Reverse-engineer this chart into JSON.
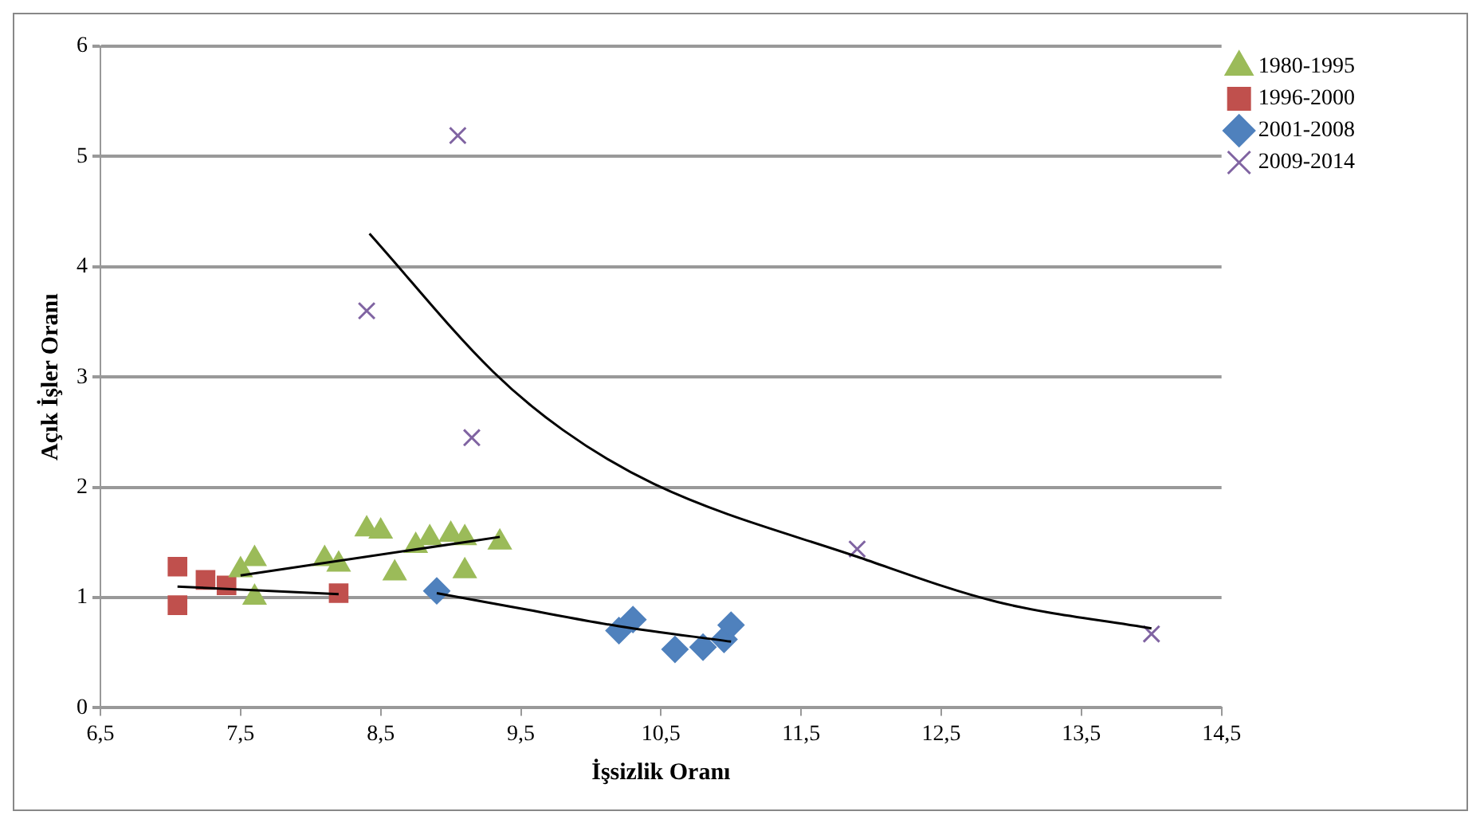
{
  "chart_data": {
    "type": "scatter",
    "xlabel": "İşsizlik Oranı",
    "ylabel": "Açık İşler Oranı",
    "xlim": [
      6.5,
      14.5
    ],
    "xticks": [
      {
        "value": 6.5,
        "label": "6,5"
      },
      {
        "value": 7.5,
        "label": "7,5"
      },
      {
        "value": 8.5,
        "label": "8,5"
      },
      {
        "value": 9.5,
        "label": "9,5"
      },
      {
        "value": 10.5,
        "label": "10,5"
      },
      {
        "value": 11.5,
        "label": "11,5"
      },
      {
        "value": 12.5,
        "label": "12,5"
      },
      {
        "value": 13.5,
        "label": "13,5"
      },
      {
        "value": 14.5,
        "label": "14,5"
      }
    ],
    "ylim": [
      0,
      6
    ],
    "yticks": [
      0,
      1,
      2,
      3,
      4,
      5,
      6
    ],
    "grid": "y",
    "legend": "right",
    "series": [
      {
        "name": "1980-1995",
        "type": "scatter",
        "marker": "triangle",
        "color": "#9bbb59",
        "x": [
          7.6,
          7.6,
          7.5,
          8.1,
          8.2,
          8.4,
          8.5,
          8.6,
          8.75,
          8.85,
          9.0,
          9.1,
          9.1,
          9.35
        ],
        "values": [
          1.35,
          1.0,
          1.25,
          1.35,
          1.3,
          1.62,
          1.6,
          1.22,
          1.47,
          1.54,
          1.57,
          1.54,
          1.24,
          1.5
        ]
      },
      {
        "name": "1996-2000",
        "type": "scatter",
        "marker": "square",
        "color": "#c0504d",
        "x": [
          7.05,
          7.05,
          7.25,
          7.4,
          8.2
        ],
        "values": [
          1.28,
          0.93,
          1.16,
          1.11,
          1.04
        ]
      },
      {
        "name": "2001-2008",
        "type": "scatter",
        "marker": "diamond",
        "color": "#4f81bd",
        "x": [
          8.9,
          10.2,
          10.3,
          10.6,
          10.8,
          10.95,
          11.0
        ],
        "values": [
          1.06,
          0.7,
          0.8,
          0.53,
          0.55,
          0.62,
          0.75
        ]
      },
      {
        "name": "2009-2014",
        "type": "scatter",
        "marker": "cross",
        "color": "#8064a2",
        "x": [
          9.05,
          8.4,
          9.15,
          11.9,
          14.0
        ],
        "values": [
          5.19,
          3.6,
          2.45,
          1.44,
          0.67
        ]
      },
      {
        "type": "line",
        "marker": "none",
        "color": "#000000",
        "x": [
          7.5,
          9.35
        ],
        "values": [
          1.2,
          1.55
        ]
      },
      {
        "type": "line",
        "marker": "none",
        "color": "#000000",
        "x": [
          7.05,
          8.2
        ],
        "values": [
          1.1,
          1.03
        ]
      },
      {
        "type": "line",
        "marker": "none",
        "color": "#000000",
        "x": [
          8.9,
          9.5,
          10.2,
          11.0
        ],
        "values": [
          1.04,
          0.9,
          0.74,
          0.6
        ]
      },
      {
        "type": "line",
        "marker": "none",
        "color": "#000000",
        "x": [
          8.42,
          9.3,
          9.8,
          10.45,
          11.9,
          12.9,
          14.0
        ],
        "values": [
          4.3,
          3.05,
          2.52,
          2.03,
          1.37,
          0.96,
          0.72
        ]
      }
    ]
  }
}
